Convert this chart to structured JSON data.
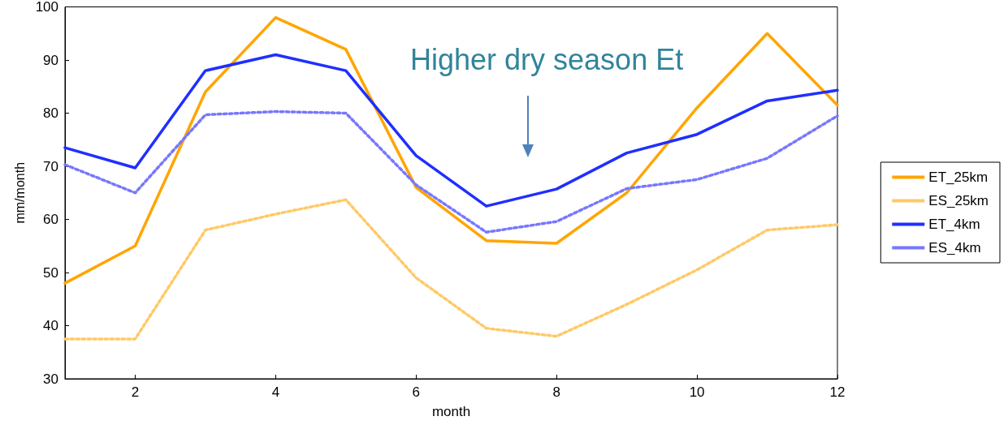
{
  "chart_data": {
    "type": "line",
    "xlabel": "month",
    "ylabel": "mm/month",
    "x": [
      1,
      2,
      3,
      4,
      5,
      6,
      7,
      8,
      9,
      10,
      11,
      12
    ],
    "xlim": [
      1,
      12
    ],
    "xticks": [
      2,
      4,
      6,
      8,
      10,
      12
    ],
    "ylim": [
      30,
      100
    ],
    "yticks": [
      30,
      40,
      50,
      60,
      70,
      80,
      90,
      100
    ],
    "grid": false,
    "legend": "right",
    "marker": "none",
    "annotations": [
      "Higher dry season Et"
    ],
    "series": [
      {
        "name": "ET_25km",
        "color": "#ffa500",
        "line_style": "solid",
        "values": [
          48,
          55,
          84,
          98,
          92,
          66,
          56,
          55.5,
          65,
          81,
          95,
          81.5
        ]
      },
      {
        "name": "ES_25km",
        "color": "#ffc966",
        "line_style": "dotted",
        "values": [
          37.5,
          37.5,
          58,
          61,
          63.7,
          49,
          39.5,
          38,
          44,
          50.5,
          58,
          59
        ]
      },
      {
        "name": "ET_4km",
        "color": "#1f2fff",
        "line_style": "solid",
        "values": [
          73.5,
          69.7,
          88,
          91,
          88,
          72,
          62.5,
          65.7,
          72.5,
          76,
          82.3,
          84.3
        ]
      },
      {
        "name": "ES_4km",
        "color": "#7777ff",
        "line_style": "dotted",
        "values": [
          70.3,
          65,
          79.7,
          80.3,
          80,
          66.5,
          57.6,
          59.6,
          65.8,
          67.5,
          71.5,
          79.5
        ]
      }
    ]
  }
}
